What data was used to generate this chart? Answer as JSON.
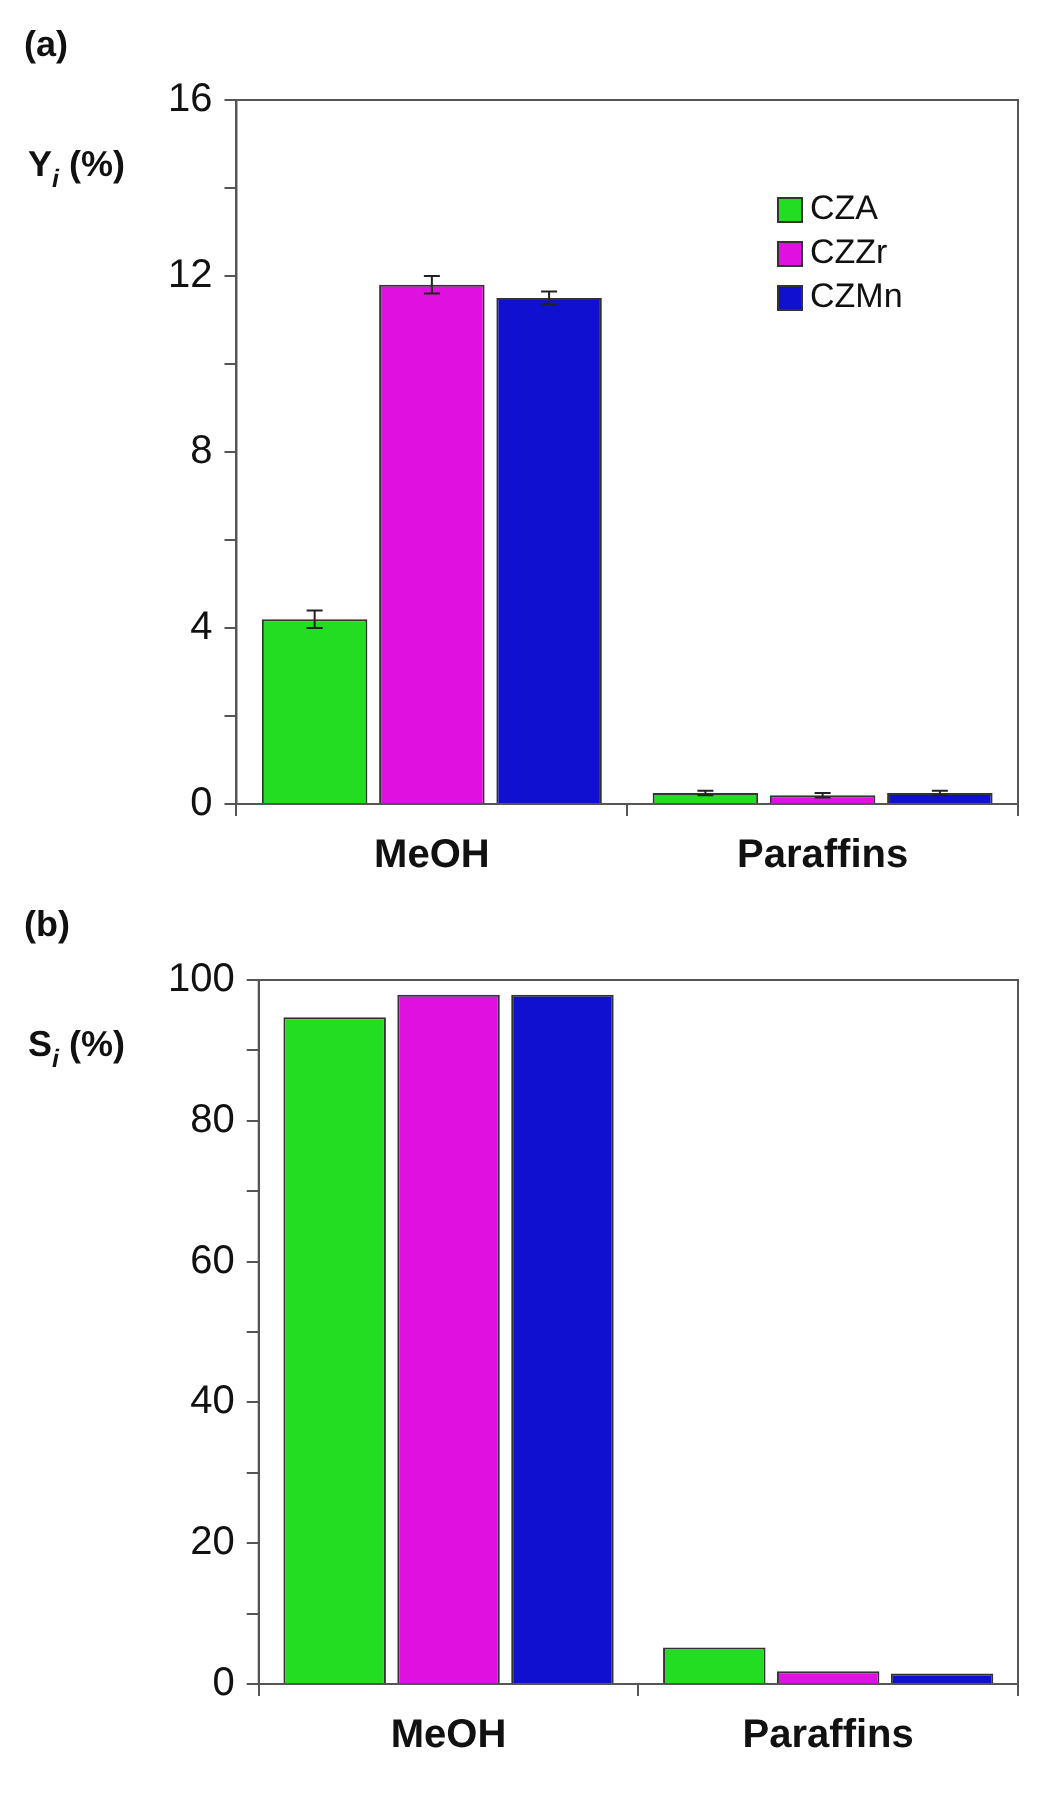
{
  "chart_data": [
    {
      "type": "bar",
      "title": "(a)",
      "ylabel": "Y$_{i}$ (%)",
      "categories": [
        "MeOH",
        "Paraffins"
      ],
      "series": [
        {
          "name": "CZA",
          "color": "#22dd22",
          "values": [
            4.2,
            0.25
          ],
          "errors": [
            0.2,
            0.05
          ]
        },
        {
          "name": "CZZr",
          "color": "#e010e0",
          "values": [
            11.8,
            0.2
          ],
          "errors": [
            0.2,
            0.05
          ]
        },
        {
          "name": "CZMn",
          "color": "#1010d0",
          "values": [
            11.5,
            0.25
          ],
          "errors": [
            0.15,
            0.05
          ]
        }
      ],
      "ylim": [
        0,
        16
      ],
      "yticks": [
        0,
        {
          "value": 2,
          "label": null
        },
        4,
        {
          "value": 6,
          "label": null
        },
        8,
        {
          "value": 10,
          "label": null
        },
        12,
        {
          "value": 14,
          "label": null
        },
        16
      ],
      "grid": false,
      "legend": "top right"
    },
    {
      "type": "bar",
      "title": "(b)",
      "ylabel": "S$_{i}$ (%)",
      "categories": [
        "MeOH",
        "Paraffins"
      ],
      "series": [
        {
          "color": "#22dd22",
          "values": [
            94.7,
            5.2
          ]
        },
        {
          "color": "#e010e0",
          "values": [
            97.9,
            1.8
          ]
        },
        {
          "color": "#1010d0",
          "values": [
            97.9,
            1.5
          ]
        }
      ],
      "ylim": [
        0,
        100
      ],
      "yticks": [
        0,
        {
          "value": 10,
          "label": null
        },
        20,
        {
          "value": 30,
          "label": null
        },
        40,
        {
          "value": 50,
          "label": null
        },
        60,
        {
          "value": 70,
          "label": null
        },
        80,
        {
          "value": 90,
          "label": null
        },
        100
      ],
      "grid": false,
      "legend": false
    }
  ]
}
